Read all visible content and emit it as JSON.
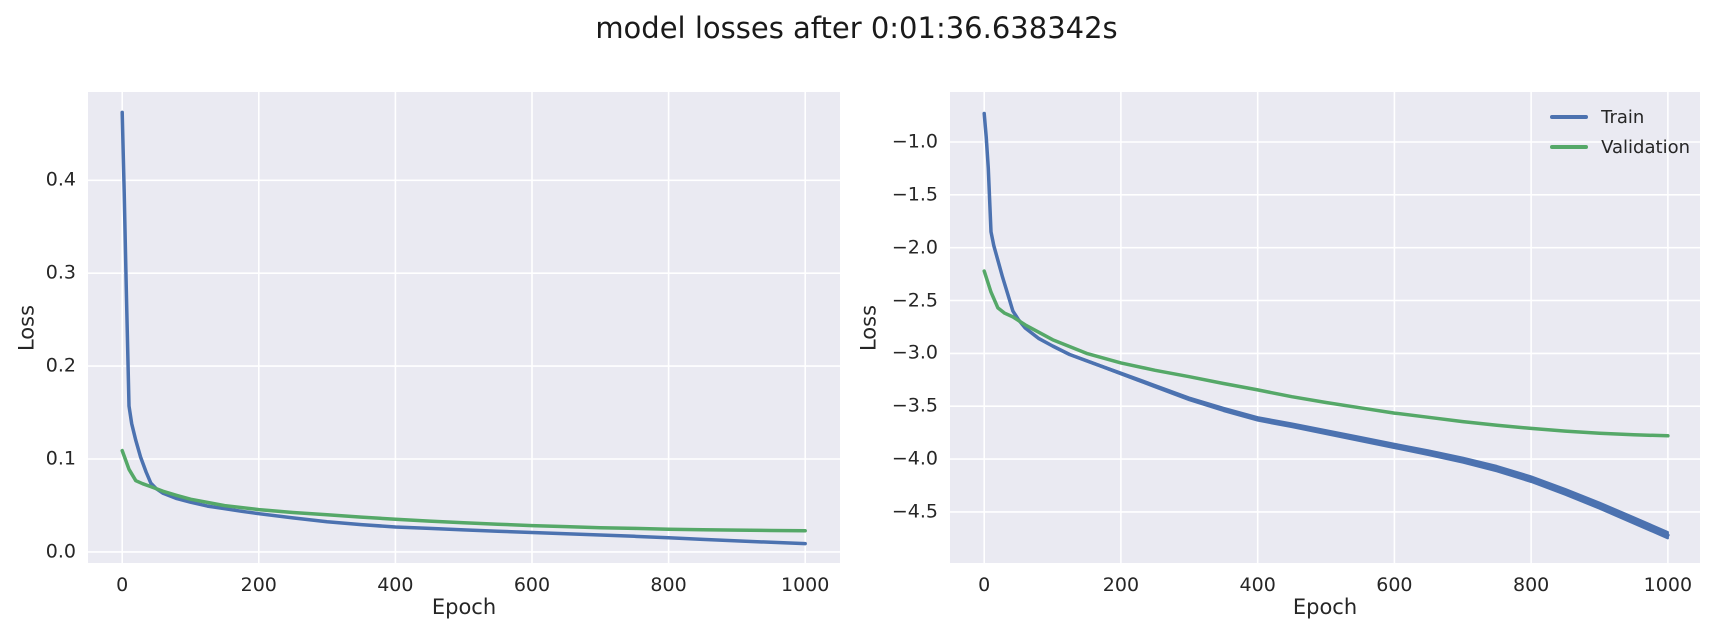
{
  "title": "model losses after 0:01:36.638342s",
  "colors": {
    "train": "#4c72b0",
    "validation": "#55a868",
    "axes_bg": "#eaeaf2",
    "grid": "#ffffff",
    "text": "#262626"
  },
  "chart_data": [
    {
      "type": "line",
      "title": "",
      "xlabel": "Epoch",
      "ylabel": "Loss",
      "grid": true,
      "legend": false,
      "xlim": [
        -50,
        1051
      ],
      "ylim": [
        -0.012,
        0.495
      ],
      "xticks": [
        0,
        200,
        400,
        600,
        800,
        1000
      ],
      "xtick_labels": [
        "0",
        "200",
        "400",
        "600",
        "800",
        "1000"
      ],
      "yticks": [
        0.0,
        0.1,
        0.2,
        0.3,
        0.4
      ],
      "ytick_labels": [
        "0.0",
        "0.1",
        "0.2",
        "0.3",
        "0.4"
      ],
      "series": [
        {
          "name": "Train",
          "color": "#4c72b0",
          "points": [
            [
              0,
              0.473
            ],
            [
              3,
              0.387
            ],
            [
              6,
              0.287
            ],
            [
              10,
              0.157
            ],
            [
              14,
              0.138
            ],
            [
              20,
              0.12
            ],
            [
              27,
              0.102
            ],
            [
              35,
              0.086
            ],
            [
              42,
              0.074
            ],
            [
              50,
              0.068
            ],
            [
              60,
              0.063
            ],
            [
              80,
              0.0573
            ],
            [
              100,
              0.0534
            ],
            [
              125,
              0.0492
            ],
            [
              150,
              0.0465
            ],
            [
              175,
              0.0437
            ],
            [
              200,
              0.0411
            ],
            [
              250,
              0.0365
            ],
            [
              300,
              0.0324
            ],
            [
              350,
              0.0293
            ],
            [
              400,
              0.0268
            ],
            [
              450,
              0.0252
            ],
            [
              500,
              0.0236
            ],
            [
              550,
              0.0222
            ],
            [
              600,
              0.0208
            ],
            [
              650,
              0.0195
            ],
            [
              700,
              0.0181
            ],
            [
              750,
              0.0167
            ],
            [
              800,
              0.0152
            ],
            [
              850,
              0.0134
            ],
            [
              900,
              0.0118
            ],
            [
              950,
              0.0103
            ],
            [
              1000,
              0.0089
            ]
          ]
        },
        {
          "name": "Validation",
          "color": "#55a868",
          "points": [
            [
              0,
              0.109
            ],
            [
              10,
              0.0889
            ],
            [
              20,
              0.0766
            ],
            [
              30,
              0.0734
            ],
            [
              42,
              0.0702
            ],
            [
              60,
              0.0652
            ],
            [
              80,
              0.0608
            ],
            [
              100,
              0.0567
            ],
            [
              150,
              0.0498
            ],
            [
              200,
              0.0455
            ],
            [
              250,
              0.0424
            ],
            [
              300,
              0.0399
            ],
            [
              350,
              0.0374
            ],
            [
              400,
              0.0352
            ],
            [
              450,
              0.0331
            ],
            [
              500,
              0.0313
            ],
            [
              550,
              0.0298
            ],
            [
              600,
              0.0283
            ],
            [
              650,
              0.0272
            ],
            [
              700,
              0.026
            ],
            [
              750,
              0.0252
            ],
            [
              800,
              0.0244
            ],
            [
              850,
              0.0238
            ],
            [
              900,
              0.0234
            ],
            [
              950,
              0.023
            ],
            [
              1000,
              0.0228
            ]
          ]
        }
      ]
    },
    {
      "type": "line",
      "title": "",
      "xlabel": "Epoch",
      "ylabel": "Loss",
      "grid": true,
      "legend": true,
      "legend_position": "upper right",
      "xlim": [
        -50,
        1047
      ],
      "ylim": [
        -4.983,
        -0.527
      ],
      "xticks": [
        0,
        200,
        400,
        600,
        800,
        1000
      ],
      "xtick_labels": [
        "0",
        "200",
        "400",
        "600",
        "800",
        "1000"
      ],
      "yticks": [
        -4.5,
        -4.0,
        -3.5,
        -3.0,
        -2.5,
        -2.0,
        -1.5,
        -1.0
      ],
      "ytick_labels": [
        "−4.5",
        "−4.0",
        "−3.5",
        "−3.0",
        "−2.5",
        "−2.0",
        "−1.5",
        "−1.0"
      ],
      "series": [
        {
          "name": "Train",
          "color": "#4c72b0",
          "points": [
            [
              0,
              -0.73
            ],
            [
              3,
              -0.95
            ],
            [
              6,
              -1.25
            ],
            [
              10,
              -1.85
            ],
            [
              14,
              -1.98
            ],
            [
              20,
              -2.12
            ],
            [
              27,
              -2.28
            ],
            [
              35,
              -2.45
            ],
            [
              42,
              -2.6
            ],
            [
              50,
              -2.68
            ],
            [
              60,
              -2.76
            ],
            [
              80,
              -2.86
            ],
            [
              100,
              -2.93
            ],
            [
              125,
              -3.01
            ],
            [
              150,
              -3.07
            ],
            [
              175,
              -3.13
            ],
            [
              200,
              -3.19
            ],
            [
              250,
              -3.31
            ],
            [
              300,
              -3.43
            ],
            [
              350,
              -3.53
            ],
            [
              400,
              -3.62
            ],
            [
              450,
              -3.68
            ],
            [
              500,
              -3.745
            ],
            [
              550,
              -3.81
            ],
            [
              600,
              -3.875
            ],
            [
              650,
              -3.94
            ],
            [
              700,
              -4.01
            ],
            [
              750,
              -4.09
            ],
            [
              800,
              -4.19
            ],
            [
              850,
              -4.31
            ],
            [
              900,
              -4.44
            ],
            [
              950,
              -4.58
            ],
            [
              1000,
              -4.72
            ]
          ],
          "band_halfwidth": [
            0,
            0,
            0,
            0,
            0,
            0,
            0,
            0,
            0,
            0,
            0,
            0,
            0.002,
            0.004,
            0.006,
            0.008,
            0.01,
            0.012,
            0.014,
            0.016,
            0.017,
            0.018,
            0.019,
            0.02,
            0.021,
            0.022,
            0.024,
            0.026,
            0.027,
            0.028,
            0.029,
            0.03,
            0.03
          ]
        },
        {
          "name": "Validation",
          "color": "#55a868",
          "points": [
            [
              0,
              -2.22
            ],
            [
              10,
              -2.42
            ],
            [
              20,
              -2.57
            ],
            [
              30,
              -2.62
            ],
            [
              42,
              -2.655
            ],
            [
              60,
              -2.73
            ],
            [
              80,
              -2.8
            ],
            [
              100,
              -2.87
            ],
            [
              150,
              -3.0
            ],
            [
              200,
              -3.09
            ],
            [
              250,
              -3.16
            ],
            [
              300,
              -3.22
            ],
            [
              350,
              -3.285
            ],
            [
              400,
              -3.345
            ],
            [
              450,
              -3.41
            ],
            [
              500,
              -3.465
            ],
            [
              550,
              -3.515
            ],
            [
              600,
              -3.565
            ],
            [
              650,
              -3.605
            ],
            [
              700,
              -3.645
            ],
            [
              750,
              -3.68
            ],
            [
              800,
              -3.71
            ],
            [
              850,
              -3.735
            ],
            [
              900,
              -3.755
            ],
            [
              950,
              -3.77
            ],
            [
              1000,
              -3.78
            ]
          ]
        }
      ]
    }
  ]
}
